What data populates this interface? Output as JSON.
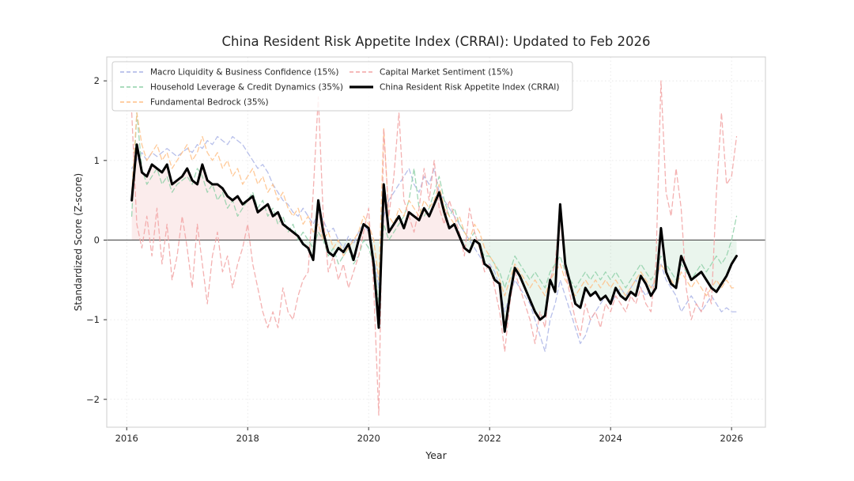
{
  "figure": {
    "title": "China Resident Risk Appetite Index (CRRAI): Updated to Feb 2026",
    "xlabel": "Year",
    "ylabel": "Standardized Score (Z−score)"
  },
  "chart_data": {
    "type": "line",
    "title": "China Resident Risk Appetite Index (CRRAI): Updated to Feb 2026",
    "xlabel": "Year",
    "ylabel": "Standardized Score (Z-score)",
    "xlim": [
      2015.67,
      2026.56
    ],
    "ylim": [
      -2.35,
      2.3
    ],
    "x_ticks": [
      2016,
      2018,
      2020,
      2022,
      2024,
      2026
    ],
    "y_ticks": [
      -2,
      -1,
      0,
      1,
      2
    ],
    "grid": true,
    "legend_position": "upper-left",
    "x_start": 2016.0833,
    "x_step_years": 0.0833333,
    "fill": {
      "series": "China Resident Risk Appetite Index (CRRAI)",
      "baseline": 0,
      "positive_color": "#e88a8a",
      "negative_color": "#7cc08e",
      "opacity": 0.16
    },
    "series": [
      {
        "name": "Macro Liquidity & Business Confidence (15%)",
        "color": "#aab4e6",
        "style": "dashed",
        "width": 1.3,
        "values": [
          0.9,
          1.0,
          1.1,
          1.0,
          1.1,
          1.05,
          1.1,
          1.15,
          1.1,
          1.05,
          1.1,
          1.15,
          1.1,
          1.2,
          1.15,
          1.25,
          1.2,
          1.3,
          1.25,
          1.2,
          1.3,
          1.25,
          1.2,
          1.1,
          1.0,
          0.9,
          0.95,
          0.85,
          0.7,
          0.6,
          0.5,
          0.45,
          0.35,
          0.3,
          0.4,
          0.3,
          0.2,
          0.35,
          0.25,
          0.1,
          0.15,
          0.0,
          -0.1,
          0.05,
          -0.05,
          0.1,
          0.2,
          0.1,
          -0.2,
          -0.6,
          0.3,
          0.5,
          0.6,
          0.7,
          0.8,
          0.9,
          0.7,
          0.6,
          0.8,
          0.7,
          0.9,
          0.6,
          0.5,
          0.4,
          0.3,
          0.2,
          0.1,
          0.0,
          -0.1,
          -0.2,
          -0.3,
          -0.3,
          -0.4,
          -0.6,
          -0.9,
          -0.7,
          -0.5,
          -0.6,
          -0.7,
          -0.8,
          -1.0,
          -1.2,
          -1.4,
          -1.0,
          -0.8,
          -0.5,
          -0.7,
          -0.9,
          -1.1,
          -1.3,
          -1.2,
          -1.0,
          -0.9,
          -0.8,
          -0.7,
          -0.8,
          -0.7,
          -0.6,
          -0.7,
          -0.6,
          -0.5,
          -0.6,
          -0.7,
          -0.6,
          -0.5,
          -0.3,
          -0.5,
          -0.6,
          -0.7,
          -0.9,
          -0.8,
          -0.7,
          -0.8,
          -0.9,
          -0.8,
          -0.7,
          -0.8,
          -0.9,
          -0.85,
          -0.9,
          -0.9
        ]
      },
      {
        "name": "Household Leverage & Credit Dynamics (35%)",
        "color": "#8fd0a8",
        "style": "dashed",
        "width": 1.3,
        "values": [
          0.3,
          1.6,
          0.9,
          0.7,
          0.8,
          0.9,
          0.7,
          0.8,
          0.6,
          0.7,
          0.75,
          0.8,
          0.7,
          0.9,
          0.8,
          0.6,
          0.7,
          0.5,
          0.6,
          0.4,
          0.5,
          0.3,
          0.4,
          0.5,
          0.6,
          0.4,
          0.5,
          0.3,
          0.4,
          0.2,
          0.3,
          0.1,
          0.2,
          0.0,
          0.1,
          0.0,
          -0.1,
          0.1,
          0.0,
          -0.2,
          -0.1,
          -0.3,
          -0.2,
          -0.1,
          -0.3,
          -0.2,
          0.0,
          -0.1,
          -0.3,
          -0.8,
          0.2,
          0.0,
          0.1,
          0.2,
          0.3,
          0.5,
          0.9,
          0.4,
          0.3,
          0.4,
          0.6,
          0.8,
          0.5,
          0.3,
          0.4,
          0.2,
          0.1,
          0.0,
          0.1,
          -0.1,
          -0.2,
          -0.2,
          -0.3,
          -0.4,
          -0.6,
          -0.4,
          -0.2,
          -0.3,
          -0.4,
          -0.5,
          -0.4,
          -0.5,
          -0.6,
          -0.4,
          -0.3,
          -0.2,
          -0.4,
          -0.5,
          -0.6,
          -0.5,
          -0.4,
          -0.5,
          -0.4,
          -0.5,
          -0.4,
          -0.5,
          -0.4,
          -0.5,
          -0.6,
          -0.5,
          -0.4,
          -0.3,
          -0.4,
          -0.5,
          -0.4,
          -0.2,
          -0.3,
          -0.4,
          -0.5,
          -0.3,
          -0.4,
          -0.5,
          -0.4,
          -0.3,
          -0.4,
          -0.3,
          -0.2,
          -0.3,
          -0.2,
          0.0,
          0.3
        ]
      },
      {
        "name": "Fundamental Bedrock (35%)",
        "color": "#ffbf86",
        "style": "dashed",
        "width": 1.3,
        "values": [
          0.6,
          1.6,
          1.2,
          1.0,
          1.1,
          1.2,
          1.0,
          1.1,
          0.9,
          1.0,
          1.1,
          1.2,
          1.0,
          1.1,
          1.3,
          1.1,
          1.0,
          1.1,
          0.9,
          1.0,
          0.8,
          0.9,
          0.7,
          0.8,
          0.9,
          0.7,
          0.8,
          0.6,
          0.7,
          0.5,
          0.6,
          0.4,
          0.3,
          0.4,
          0.2,
          0.3,
          0.1,
          0.2,
          0.0,
          0.1,
          -0.1,
          0.0,
          -0.2,
          -0.1,
          0.0,
          0.1,
          0.3,
          0.2,
          0.0,
          -0.5,
          1.4,
          0.3,
          0.2,
          0.4,
          0.3,
          0.5,
          0.4,
          0.3,
          0.5,
          0.4,
          0.5,
          0.7,
          0.4,
          0.3,
          0.2,
          0.3,
          0.1,
          0.0,
          0.2,
          0.1,
          -0.1,
          -0.2,
          -0.3,
          -0.5,
          -0.7,
          -0.5,
          -0.3,
          -0.4,
          -0.5,
          -0.6,
          -0.5,
          -0.6,
          -0.7,
          -0.5,
          -0.4,
          -0.3,
          -0.5,
          -0.6,
          -0.7,
          -0.6,
          -0.5,
          -0.6,
          -0.5,
          -0.6,
          -0.5,
          -0.6,
          -0.5,
          -0.6,
          -0.7,
          -0.6,
          -0.5,
          -0.4,
          -0.5,
          -0.6,
          -0.5,
          -0.3,
          -0.4,
          -0.5,
          -0.6,
          -0.4,
          -0.5,
          -0.6,
          -0.5,
          -0.6,
          -0.7,
          -0.6,
          -0.5,
          -0.6,
          -0.5,
          -0.6,
          -0.6
        ]
      },
      {
        "name": "Capital Market Sentiment (15%)",
        "color": "#f2a3a3",
        "style": "dashed",
        "width": 1.3,
        "values": [
          1.6,
          0.2,
          -0.1,
          0.3,
          -0.2,
          0.4,
          -0.3,
          0.2,
          -0.5,
          -0.2,
          0.3,
          -0.1,
          -0.6,
          0.2,
          -0.3,
          -0.8,
          -0.2,
          0.1,
          -0.4,
          -0.2,
          -0.6,
          -0.3,
          -0.1,
          0.2,
          -0.3,
          -0.6,
          -0.9,
          -1.1,
          -0.9,
          -1.1,
          -0.6,
          -0.9,
          -1.0,
          -0.7,
          -0.5,
          -0.4,
          0.6,
          1.8,
          0.3,
          -0.4,
          -0.2,
          -0.5,
          -0.3,
          -0.6,
          -0.4,
          -0.2,
          0.1,
          0.4,
          -0.6,
          -2.2,
          1.4,
          0.3,
          0.8,
          1.6,
          0.5,
          0.3,
          0.1,
          0.4,
          0.9,
          0.5,
          1.0,
          0.4,
          0.2,
          0.5,
          0.3,
          0.1,
          -0.2,
          0.4,
          0.1,
          -0.1,
          -0.4,
          -0.3,
          -0.6,
          -0.9,
          -1.4,
          -0.8,
          -0.4,
          -0.6,
          -0.8,
          -1.0,
          -1.3,
          -0.9,
          -1.1,
          -0.5,
          -0.3,
          0.4,
          -0.4,
          -0.7,
          -1.0,
          -1.2,
          -0.8,
          -1.0,
          -0.9,
          -1.1,
          -0.8,
          -0.9,
          -0.7,
          -0.8,
          -0.9,
          -0.7,
          -0.8,
          -0.6,
          -0.8,
          -0.9,
          -0.3,
          2.0,
          0.6,
          0.3,
          0.9,
          0.4,
          -0.6,
          -1.0,
          -0.8,
          -0.9,
          -0.6,
          -0.8,
          0.6,
          1.6,
          0.7,
          0.8,
          1.3
        ]
      },
      {
        "name": "China Resident Risk Appetite Index (CRRAI)",
        "color": "#000000",
        "style": "solid",
        "width": 3,
        "values": [
          0.5,
          1.2,
          0.85,
          0.8,
          0.95,
          0.9,
          0.85,
          0.95,
          0.7,
          0.75,
          0.8,
          0.9,
          0.75,
          0.7,
          0.95,
          0.75,
          0.7,
          0.7,
          0.65,
          0.55,
          0.5,
          0.55,
          0.45,
          0.5,
          0.55,
          0.35,
          0.4,
          0.45,
          0.3,
          0.35,
          0.2,
          0.15,
          0.1,
          0.05,
          -0.05,
          -0.1,
          -0.25,
          0.5,
          0.1,
          -0.15,
          -0.2,
          -0.1,
          -0.15,
          -0.05,
          -0.25,
          0.0,
          0.2,
          0.15,
          -0.3,
          -1.1,
          0.7,
          0.1,
          0.2,
          0.3,
          0.15,
          0.35,
          0.3,
          0.25,
          0.4,
          0.3,
          0.45,
          0.6,
          0.35,
          0.15,
          0.2,
          0.05,
          -0.1,
          -0.15,
          0.0,
          -0.05,
          -0.3,
          -0.35,
          -0.5,
          -0.55,
          -1.15,
          -0.7,
          -0.35,
          -0.45,
          -0.6,
          -0.75,
          -0.9,
          -1.0,
          -0.95,
          -0.5,
          -0.65,
          0.45,
          -0.3,
          -0.55,
          -0.8,
          -0.85,
          -0.6,
          -0.7,
          -0.65,
          -0.75,
          -0.7,
          -0.8,
          -0.6,
          -0.7,
          -0.75,
          -0.65,
          -0.7,
          -0.45,
          -0.55,
          -0.7,
          -0.6,
          0.15,
          -0.4,
          -0.55,
          -0.6,
          -0.2,
          -0.35,
          -0.5,
          -0.45,
          -0.4,
          -0.5,
          -0.6,
          -0.65,
          -0.55,
          -0.45,
          -0.3,
          -0.2
        ]
      }
    ]
  },
  "colors": {
    "grid": "#e4e4e4",
    "frame": "#cccccc",
    "zero_line": "#4d4d4d",
    "tick_text": "#262626"
  }
}
